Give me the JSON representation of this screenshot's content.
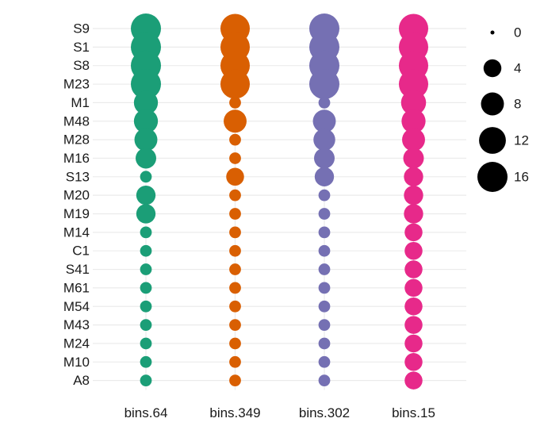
{
  "chart_data": {
    "type": "scatter",
    "subtype": "dot-plot",
    "title": "",
    "xlabel": "",
    "ylabel": "",
    "grid": true,
    "legend_position": "right",
    "categories": [
      "S9",
      "S1",
      "S8",
      "M23",
      "M1",
      "M48",
      "M28",
      "M16",
      "S13",
      "M20",
      "M19",
      "M14",
      "C1",
      "S41",
      "M61",
      "M54",
      "M43",
      "M24",
      "M10",
      "A8"
    ],
    "series": [
      {
        "name": "bins.64",
        "color": "#1b9e77",
        "values": [
          16,
          16,
          16,
          16,
          9,
          9,
          8,
          6,
          1,
          5,
          5,
          1,
          1,
          1,
          1,
          1,
          1,
          1,
          1,
          1
        ]
      },
      {
        "name": "bins.349",
        "color": "#d95f02",
        "values": [
          15,
          15,
          15,
          15,
          1,
          8,
          1,
          1,
          4,
          1,
          1,
          1,
          1,
          1,
          1,
          1,
          1,
          1,
          1,
          1
        ]
      },
      {
        "name": "bins.302",
        "color": "#7570b3",
        "values": [
          16,
          16,
          16,
          16,
          1,
          8,
          7,
          6,
          5,
          1,
          1,
          1,
          1,
          1,
          1,
          1,
          1,
          1,
          1,
          1
        ]
      },
      {
        "name": "bins.15",
        "color": "#e7298a",
        "values": [
          15,
          15,
          15,
          15,
          10,
          9,
          8,
          6,
          5,
          5,
          5,
          4,
          4,
          4,
          4,
          4,
          4,
          4,
          4,
          4
        ]
      }
    ],
    "size_legend": {
      "values": [
        0,
        4,
        8,
        12,
        16
      ],
      "labels": [
        "0",
        "4",
        "8",
        "12",
        "16"
      ]
    }
  }
}
